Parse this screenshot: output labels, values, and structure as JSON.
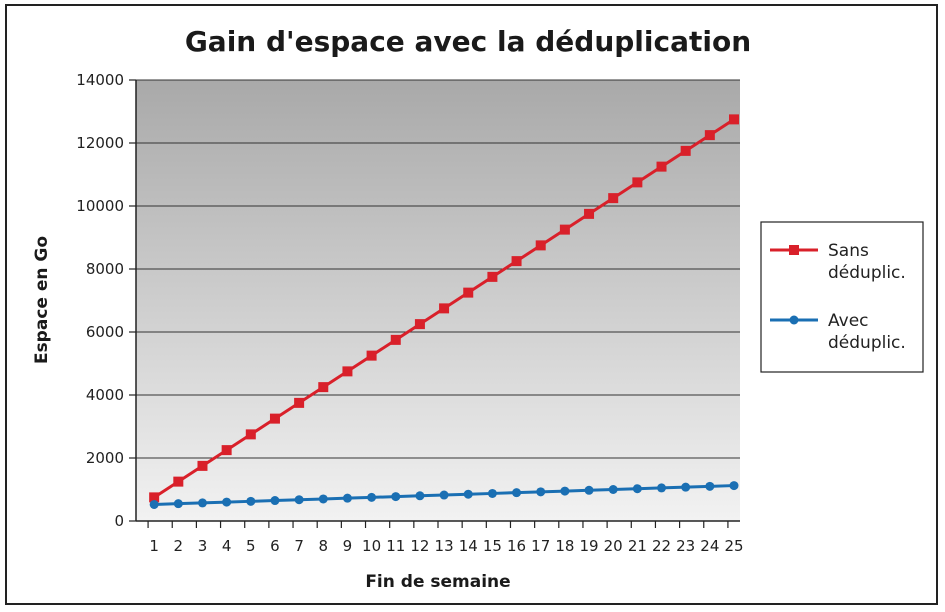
{
  "chart_data": {
    "type": "line",
    "title": "Gain d'espace avec la déduplication",
    "xlabel": "Fin de semaine",
    "ylabel": "Espace en Go",
    "ylim": [
      0,
      14000
    ],
    "yticks": [
      0,
      2000,
      4000,
      6000,
      8000,
      10000,
      12000,
      14000
    ],
    "grid": true,
    "legend_position": "right",
    "categories": [
      "1",
      "2",
      "3",
      "4",
      "5",
      "6",
      "7",
      "8",
      "9",
      "10",
      "11",
      "12",
      "13",
      "14",
      "15",
      "16",
      "17",
      "18",
      "19",
      "20",
      "21",
      "22",
      "23",
      "24",
      "25"
    ],
    "series": [
      {
        "name": "Sans déduplic.",
        "legend_lines": [
          "Sans",
          "déduplic."
        ],
        "color": "#d9202a",
        "marker": "square",
        "values": [
          750,
          1250,
          1750,
          2250,
          2750,
          3250,
          3750,
          4250,
          4750,
          5250,
          5750,
          6250,
          6750,
          7250,
          7750,
          8250,
          8750,
          9250,
          9750,
          10250,
          10750,
          11250,
          11750,
          12250,
          12750
        ]
      },
      {
        "name": "Avec déduplic.",
        "legend_lines": [
          "Avec",
          "déduplic."
        ],
        "color": "#1a6fb3",
        "marker": "circle",
        "values": [
          525,
          550,
          575,
          600,
          625,
          650,
          675,
          700,
          725,
          750,
          775,
          800,
          825,
          850,
          875,
          900,
          925,
          950,
          975,
          1000,
          1025,
          1050,
          1075,
          1100,
          1125
        ]
      }
    ]
  }
}
